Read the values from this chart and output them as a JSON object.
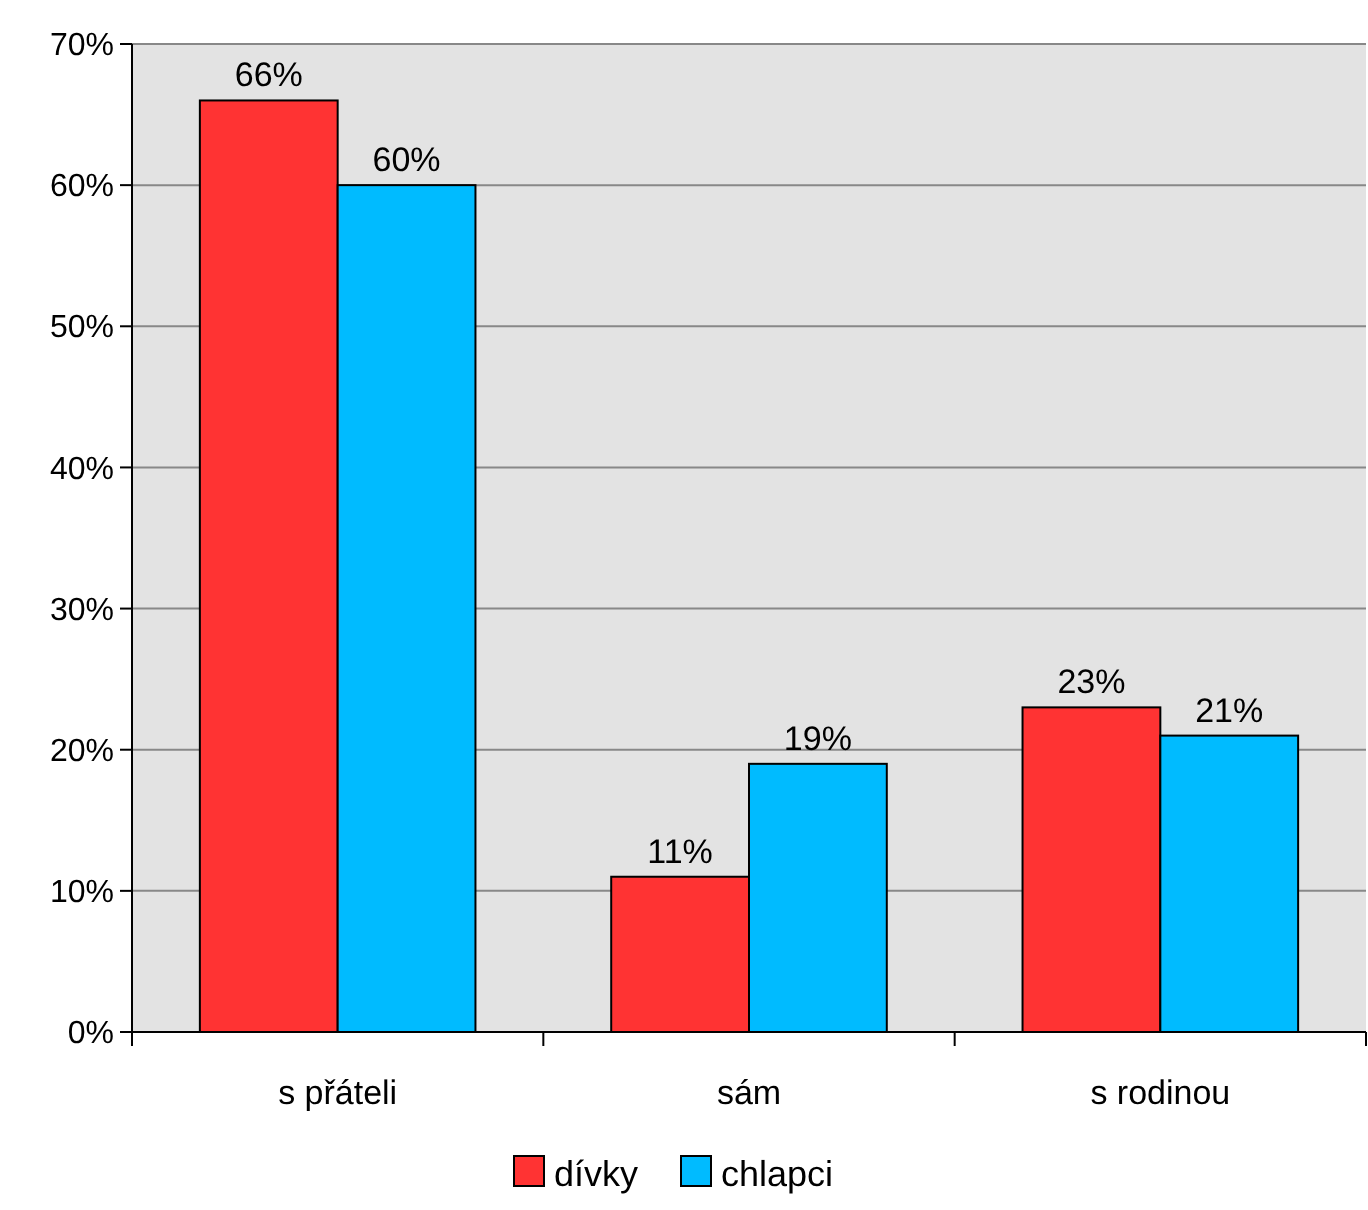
{
  "chart_data": {
    "type": "bar",
    "categories": [
      "s přáteli",
      "sám",
      "s rodinou"
    ],
    "series": [
      {
        "name": "dívky",
        "color": "#ff3333",
        "values": [
          66,
          11,
          23
        ],
        "value_labels": [
          "66%",
          "11%",
          "23%"
        ]
      },
      {
        "name": "chlapci",
        "color": "#00bbff",
        "values": [
          60,
          19,
          21
        ],
        "value_labels": [
          "60%",
          "19%",
          "21%"
        ]
      }
    ],
    "ylim": [
      0,
      70
    ],
    "yticks": [
      {
        "value": 0,
        "label": "0%"
      },
      {
        "value": 10,
        "label": "10%"
      },
      {
        "value": 20,
        "label": "20%"
      },
      {
        "value": 30,
        "label": "30%"
      },
      {
        "value": 40,
        "label": "40%"
      },
      {
        "value": 50,
        "label": "50%"
      },
      {
        "value": 60,
        "label": "60%"
      },
      {
        "value": 70,
        "label": "70%"
      }
    ],
    "grid": "y",
    "legend": "bottom"
  }
}
